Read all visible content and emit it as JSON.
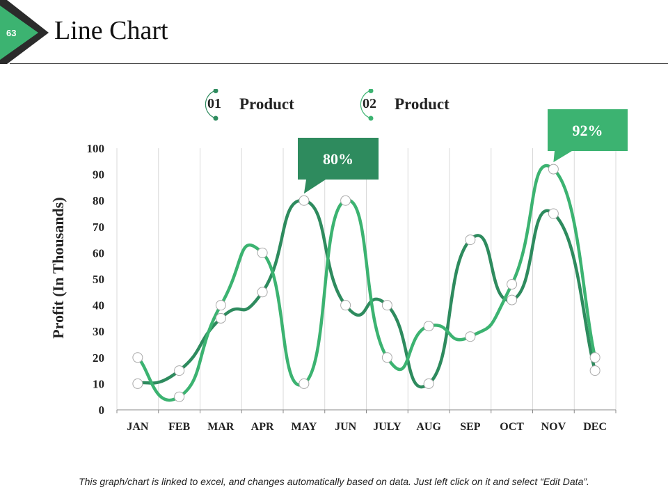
{
  "slide_number": "63",
  "title": "Line Chart",
  "legend": [
    {
      "num": "01",
      "label": "Product",
      "color": "#2e8b5e"
    },
    {
      "num": "02",
      "label": "Product",
      "color": "#3cb371"
    }
  ],
  "footer": "This graph/chart is linked to excel, and changes automatically based on data. Just left click on it and select “Edit Data”.",
  "callouts": [
    {
      "text": "80%",
      "series": 0,
      "index": 4,
      "color": "#2e8b5e"
    },
    {
      "text": "92%",
      "series": 1,
      "index": 10,
      "color": "#3cb371"
    }
  ],
  "chart_data": {
    "type": "line",
    "title": "Line Chart",
    "xlabel": "",
    "ylabel": "Profit (In Thousands)",
    "categories": [
      "JAN",
      "FEB",
      "MAR",
      "APR",
      "MAY",
      "JUN",
      "JULY",
      "AUG",
      "SEP",
      "OCT",
      "NOV",
      "DEC"
    ],
    "ylim": [
      0,
      100
    ],
    "yticks": [
      0,
      10,
      20,
      30,
      40,
      50,
      60,
      70,
      80,
      90,
      100
    ],
    "grid": "vertical",
    "smooth": true,
    "series": [
      {
        "name": "Product 01",
        "color": "#2e8b5e",
        "values": [
          10,
          15,
          35,
          45,
          80,
          40,
          40,
          10,
          65,
          42,
          75,
          15
        ]
      },
      {
        "name": "Product 02",
        "color": "#3cb371",
        "values": [
          20,
          5,
          40,
          60,
          10,
          80,
          20,
          32,
          28,
          48,
          92,
          20
        ]
      }
    ]
  }
}
